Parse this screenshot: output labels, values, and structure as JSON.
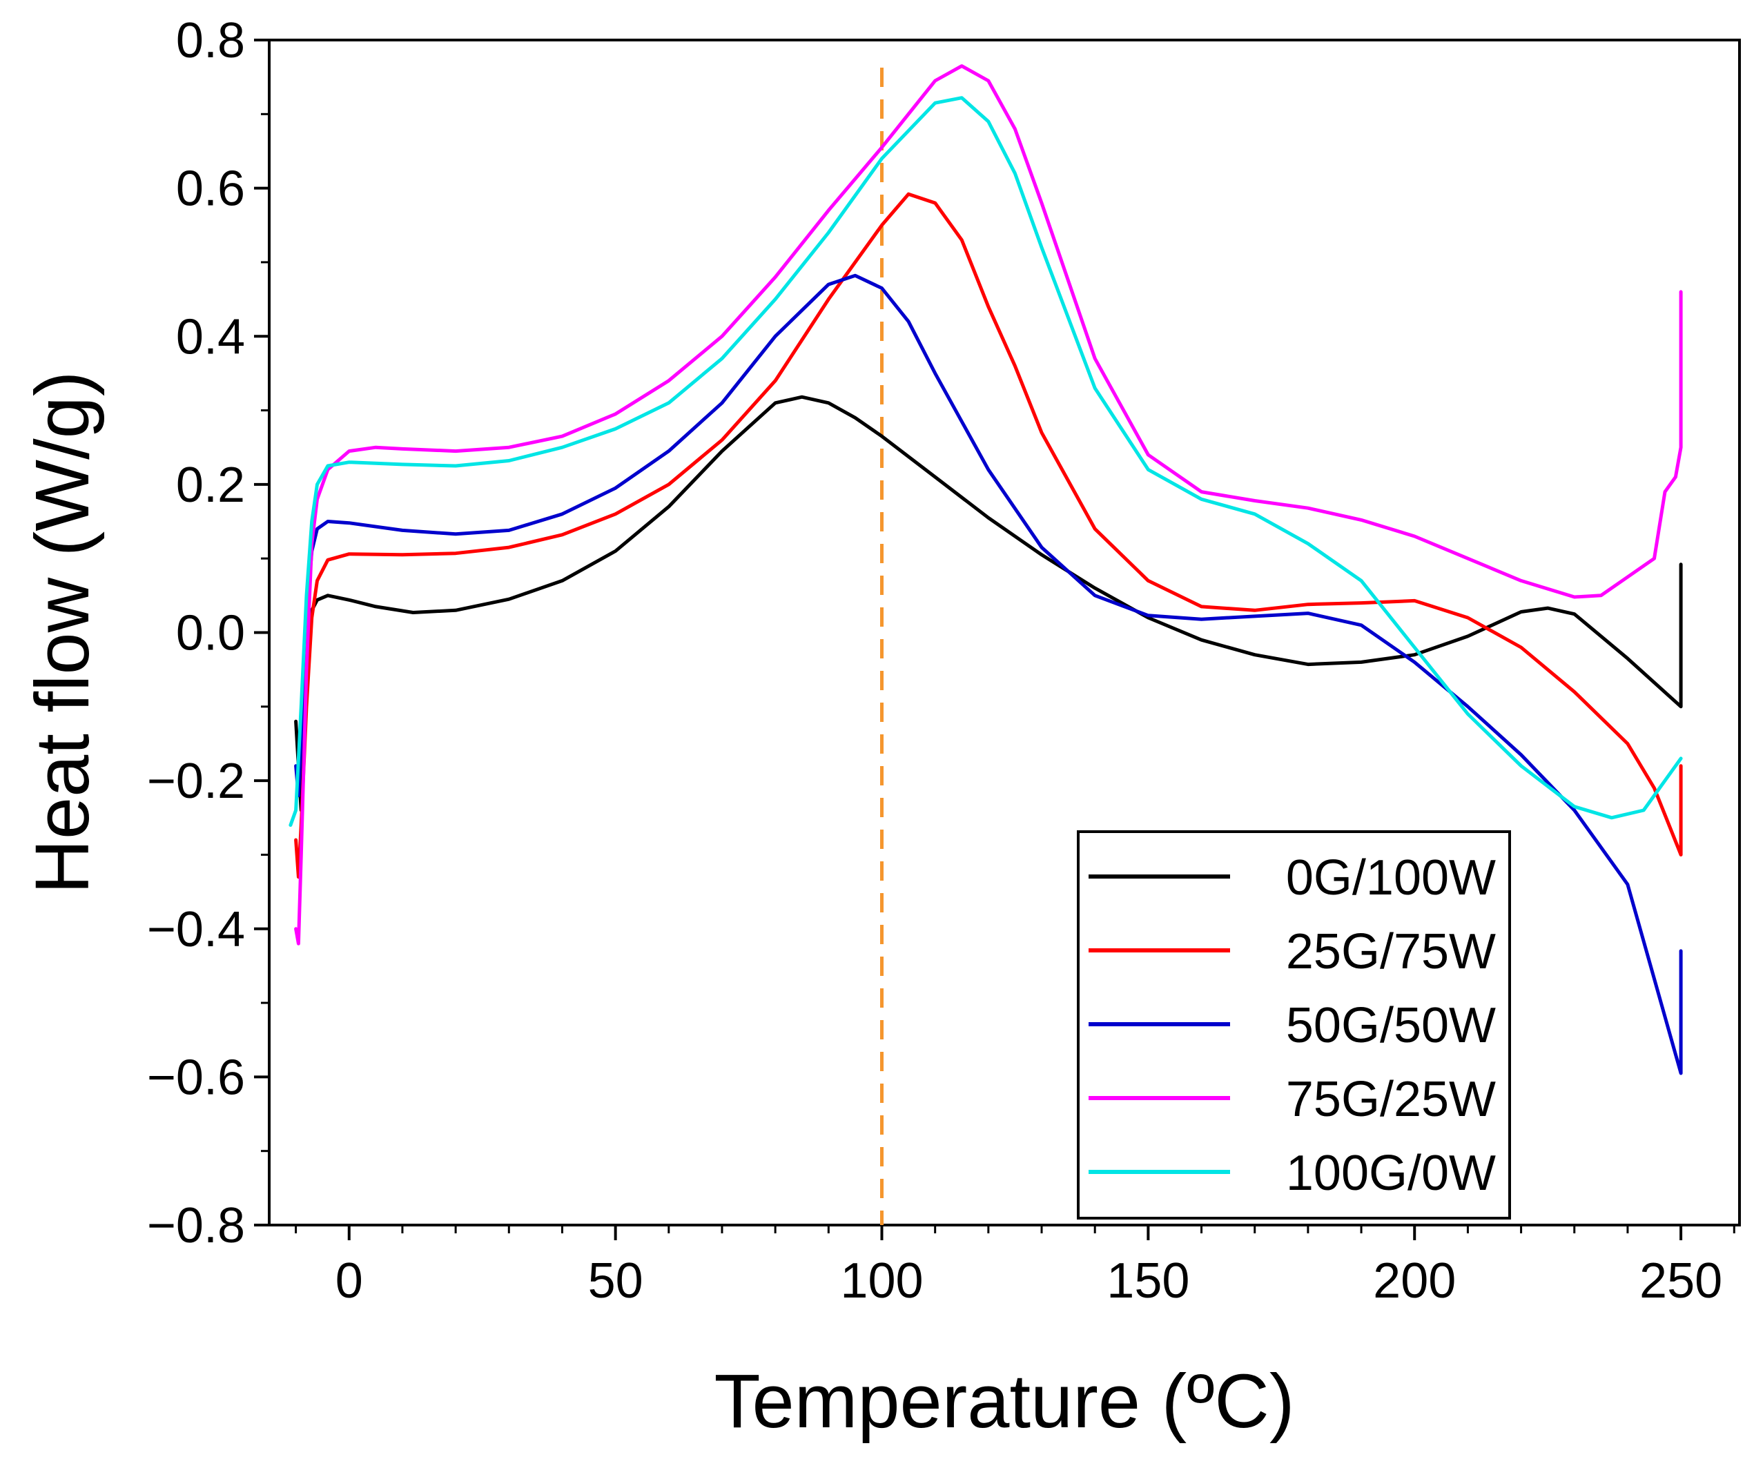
{
  "chart_data": {
    "type": "line",
    "title": "",
    "xlabel": "Temperature (ºC)",
    "ylabel": "Heat flow (W/g)",
    "xlim": [
      -15,
      261
    ],
    "ylim": [
      -0.8,
      0.8
    ],
    "x_ticks": [
      0,
      50,
      100,
      150,
      200,
      250
    ],
    "x_tick_labels": [
      "0",
      "50",
      "100",
      "150",
      "200",
      "250"
    ],
    "y_ticks": [
      -0.8,
      -0.6,
      -0.4,
      -0.2,
      0.0,
      0.2,
      0.4,
      0.6,
      0.8
    ],
    "y_tick_labels": [
      "−0.8",
      "−0.6",
      "−0.4",
      "−0.2",
      "0.0",
      "0.2",
      "0.4",
      "0.6",
      "0.8"
    ],
    "grid": false,
    "legend_position": "bottom-right",
    "reference_line": {
      "x": 100,
      "style": "dashed",
      "color": "#F5962E"
    },
    "series": [
      {
        "name": "0G/100W",
        "color": "#000000",
        "points": [
          [
            -10,
            -0.12
          ],
          [
            -9.5,
            -0.18
          ],
          [
            -9,
            -0.24
          ],
          [
            -8.5,
            -0.1
          ],
          [
            -8,
            0.0
          ],
          [
            -7,
            0.03
          ],
          [
            -6,
            0.044
          ],
          [
            -4,
            0.05
          ],
          [
            0,
            0.044
          ],
          [
            5,
            0.035
          ],
          [
            12,
            0.027
          ],
          [
            20,
            0.03
          ],
          [
            30,
            0.045
          ],
          [
            40,
            0.07
          ],
          [
            50,
            0.11
          ],
          [
            60,
            0.17
          ],
          [
            70,
            0.245
          ],
          [
            80,
            0.31
          ],
          [
            85,
            0.318
          ],
          [
            90,
            0.31
          ],
          [
            95,
            0.29
          ],
          [
            100,
            0.265
          ],
          [
            110,
            0.21
          ],
          [
            120,
            0.155
          ],
          [
            130,
            0.105
          ],
          [
            140,
            0.06
          ],
          [
            150,
            0.02
          ],
          [
            160,
            -0.01
          ],
          [
            170,
            -0.03
          ],
          [
            180,
            -0.043
          ],
          [
            190,
            -0.04
          ],
          [
            200,
            -0.03
          ],
          [
            210,
            -0.005
          ],
          [
            220,
            0.028
          ],
          [
            225,
            0.033
          ],
          [
            230,
            0.025
          ],
          [
            240,
            -0.035
          ],
          [
            250,
            -0.1
          ],
          [
            250,
            0.092
          ]
        ]
      },
      {
        "name": "25G/75W",
        "color": "#FF0000",
        "points": [
          [
            -10,
            -0.28
          ],
          [
            -9.5,
            -0.33
          ],
          [
            -9,
            -0.26
          ],
          [
            -8,
            -0.1
          ],
          [
            -7,
            0.02
          ],
          [
            -6,
            0.07
          ],
          [
            -4,
            0.098
          ],
          [
            0,
            0.106
          ],
          [
            10,
            0.105
          ],
          [
            20,
            0.107
          ],
          [
            30,
            0.115
          ],
          [
            40,
            0.132
          ],
          [
            50,
            0.16
          ],
          [
            60,
            0.2
          ],
          [
            70,
            0.26
          ],
          [
            80,
            0.34
          ],
          [
            90,
            0.45
          ],
          [
            100,
            0.55
          ],
          [
            105,
            0.592
          ],
          [
            110,
            0.58
          ],
          [
            115,
            0.53
          ],
          [
            120,
            0.44
          ],
          [
            125,
            0.36
          ],
          [
            130,
            0.27
          ],
          [
            140,
            0.14
          ],
          [
            150,
            0.07
          ],
          [
            160,
            0.035
          ],
          [
            170,
            0.03
          ],
          [
            180,
            0.038
          ],
          [
            190,
            0.04
          ],
          [
            200,
            0.043
          ],
          [
            210,
            0.02
          ],
          [
            220,
            -0.02
          ],
          [
            230,
            -0.08
          ],
          [
            240,
            -0.15
          ],
          [
            245,
            -0.21
          ],
          [
            250,
            -0.3
          ],
          [
            250,
            -0.18
          ]
        ]
      },
      {
        "name": "50G/50W",
        "color": "#0000CC",
        "points": [
          [
            -10,
            -0.18
          ],
          [
            -9.5,
            -0.22
          ],
          [
            -9,
            -0.14
          ],
          [
            -8,
            0.02
          ],
          [
            -7,
            0.11
          ],
          [
            -6,
            0.14
          ],
          [
            -4,
            0.15
          ],
          [
            0,
            0.148
          ],
          [
            10,
            0.138
          ],
          [
            20,
            0.133
          ],
          [
            30,
            0.138
          ],
          [
            40,
            0.16
          ],
          [
            50,
            0.195
          ],
          [
            60,
            0.245
          ],
          [
            70,
            0.31
          ],
          [
            80,
            0.4
          ],
          [
            90,
            0.47
          ],
          [
            95,
            0.482
          ],
          [
            100,
            0.465
          ],
          [
            105,
            0.42
          ],
          [
            110,
            0.35
          ],
          [
            120,
            0.22
          ],
          [
            130,
            0.115
          ],
          [
            140,
            0.05
          ],
          [
            150,
            0.023
          ],
          [
            160,
            0.018
          ],
          [
            170,
            0.022
          ],
          [
            180,
            0.026
          ],
          [
            190,
            0.01
          ],
          [
            200,
            -0.04
          ],
          [
            210,
            -0.1
          ],
          [
            220,
            -0.165
          ],
          [
            230,
            -0.24
          ],
          [
            240,
            -0.34
          ],
          [
            250,
            -0.595
          ],
          [
            250,
            -0.43
          ]
        ]
      },
      {
        "name": "75G/25W",
        "color": "#FF00FF",
        "points": [
          [
            -10,
            -0.4
          ],
          [
            -9.5,
            -0.42
          ],
          [
            -9,
            -0.3
          ],
          [
            -8,
            -0.05
          ],
          [
            -7,
            0.12
          ],
          [
            -6,
            0.18
          ],
          [
            -4,
            0.22
          ],
          [
            0,
            0.245
          ],
          [
            5,
            0.25
          ],
          [
            10,
            0.248
          ],
          [
            20,
            0.245
          ],
          [
            30,
            0.25
          ],
          [
            40,
            0.265
          ],
          [
            50,
            0.295
          ],
          [
            60,
            0.34
          ],
          [
            70,
            0.4
          ],
          [
            80,
            0.48
          ],
          [
            90,
            0.57
          ],
          [
            100,
            0.655
          ],
          [
            110,
            0.745
          ],
          [
            115,
            0.765
          ],
          [
            120,
            0.745
          ],
          [
            125,
            0.68
          ],
          [
            130,
            0.58
          ],
          [
            140,
            0.37
          ],
          [
            150,
            0.24
          ],
          [
            160,
            0.19
          ],
          [
            170,
            0.178
          ],
          [
            180,
            0.168
          ],
          [
            190,
            0.152
          ],
          [
            200,
            0.13
          ],
          [
            210,
            0.1
          ],
          [
            220,
            0.07
          ],
          [
            230,
            0.048
          ],
          [
            235,
            0.05
          ],
          [
            240,
            0.075
          ],
          [
            245,
            0.1
          ],
          [
            247,
            0.19
          ],
          [
            249,
            0.21
          ],
          [
            250,
            0.25
          ],
          [
            250,
            0.46
          ]
        ]
      },
      {
        "name": "100G/0W",
        "color": "#00E5E5",
        "points": [
          [
            -11,
            -0.26
          ],
          [
            -10,
            -0.24
          ],
          [
            -9,
            -0.1
          ],
          [
            -8,
            0.05
          ],
          [
            -7,
            0.15
          ],
          [
            -6,
            0.2
          ],
          [
            -4,
            0.225
          ],
          [
            0,
            0.23
          ],
          [
            10,
            0.227
          ],
          [
            20,
            0.225
          ],
          [
            30,
            0.232
          ],
          [
            40,
            0.25
          ],
          [
            50,
            0.275
          ],
          [
            60,
            0.31
          ],
          [
            70,
            0.37
          ],
          [
            80,
            0.45
          ],
          [
            90,
            0.54
          ],
          [
            100,
            0.64
          ],
          [
            110,
            0.715
          ],
          [
            115,
            0.722
          ],
          [
            120,
            0.69
          ],
          [
            125,
            0.62
          ],
          [
            130,
            0.52
          ],
          [
            140,
            0.33
          ],
          [
            150,
            0.22
          ],
          [
            160,
            0.18
          ],
          [
            170,
            0.16
          ],
          [
            180,
            0.12
          ],
          [
            190,
            0.07
          ],
          [
            200,
            -0.02
          ],
          [
            210,
            -0.11
          ],
          [
            220,
            -0.18
          ],
          [
            230,
            -0.235
          ],
          [
            237,
            -0.25
          ],
          [
            243,
            -0.24
          ],
          [
            250,
            -0.17
          ]
        ]
      }
    ]
  }
}
